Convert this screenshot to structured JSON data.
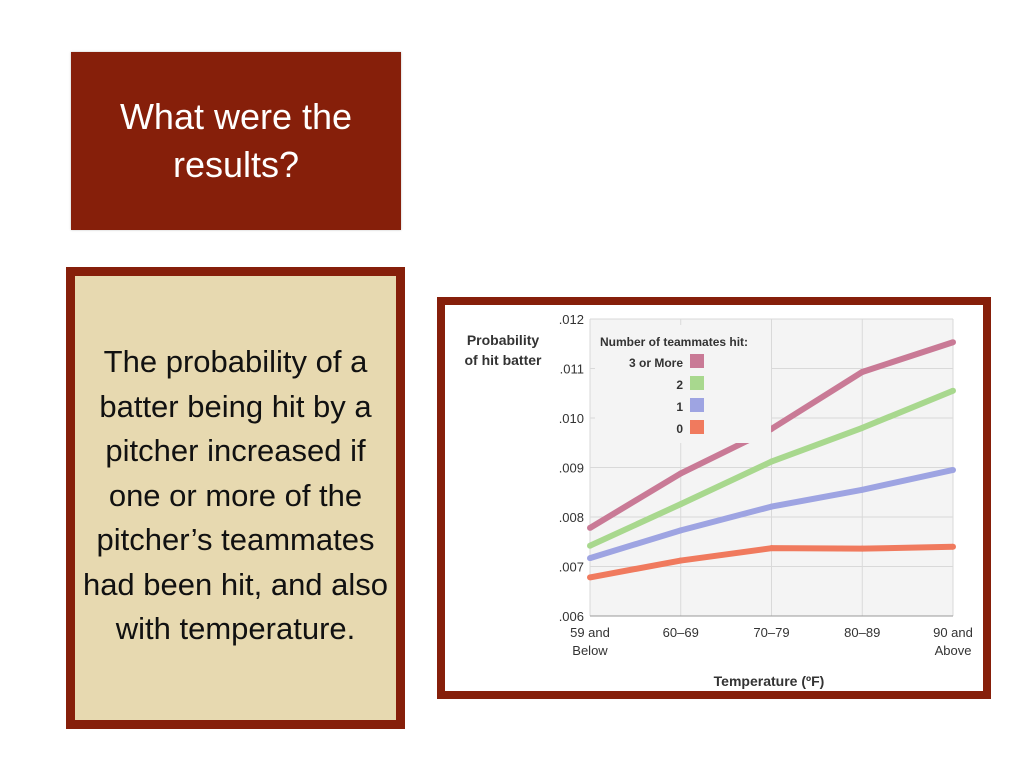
{
  "title": "What were the results?",
  "body_text": "The probability of a batter being hit by a pitcher increased if one or more of the pitcher’s teammates had been hit, and also with temperature.",
  "colors": {
    "accent": "#861f0a",
    "body_background": "#e7d9b0"
  },
  "chart_data": {
    "type": "line",
    "ylabel": [
      "Probability",
      "of hit batter"
    ],
    "xlabel": "Temperature (ºF)",
    "categories": [
      [
        "59 and",
        "Below"
      ],
      [
        "60–69"
      ],
      [
        "70–79"
      ],
      [
        "80–89"
      ],
      [
        "90 and",
        "Above"
      ]
    ],
    "ylim": [
      0.006,
      0.012
    ],
    "yticks": [
      0.006,
      0.007,
      0.008,
      0.009,
      0.01,
      0.011,
      0.012
    ],
    "ytick_labels": [
      ".006",
      ".007",
      ".008",
      ".009",
      ".010",
      ".011",
      ".012"
    ],
    "grid": true,
    "legend_title": "Number of teammates hit:",
    "legend_position": "top-left",
    "series": [
      {
        "name": "3 or More",
        "color": "#c97a96",
        "values": [
          0.00778,
          0.00888,
          0.00978,
          0.01093,
          0.01153
        ]
      },
      {
        "name": "2",
        "color": "#a8d88e",
        "values": [
          0.00742,
          0.00826,
          0.00912,
          0.0098,
          0.01055
        ]
      },
      {
        "name": "1",
        "color": "#9ea4e2",
        "values": [
          0.00717,
          0.00773,
          0.00821,
          0.00855,
          0.00895
        ]
      },
      {
        "name": "0",
        "color": "#f07a5e",
        "values": [
          0.00678,
          0.00712,
          0.00737,
          0.00736,
          0.0074
        ]
      }
    ]
  }
}
